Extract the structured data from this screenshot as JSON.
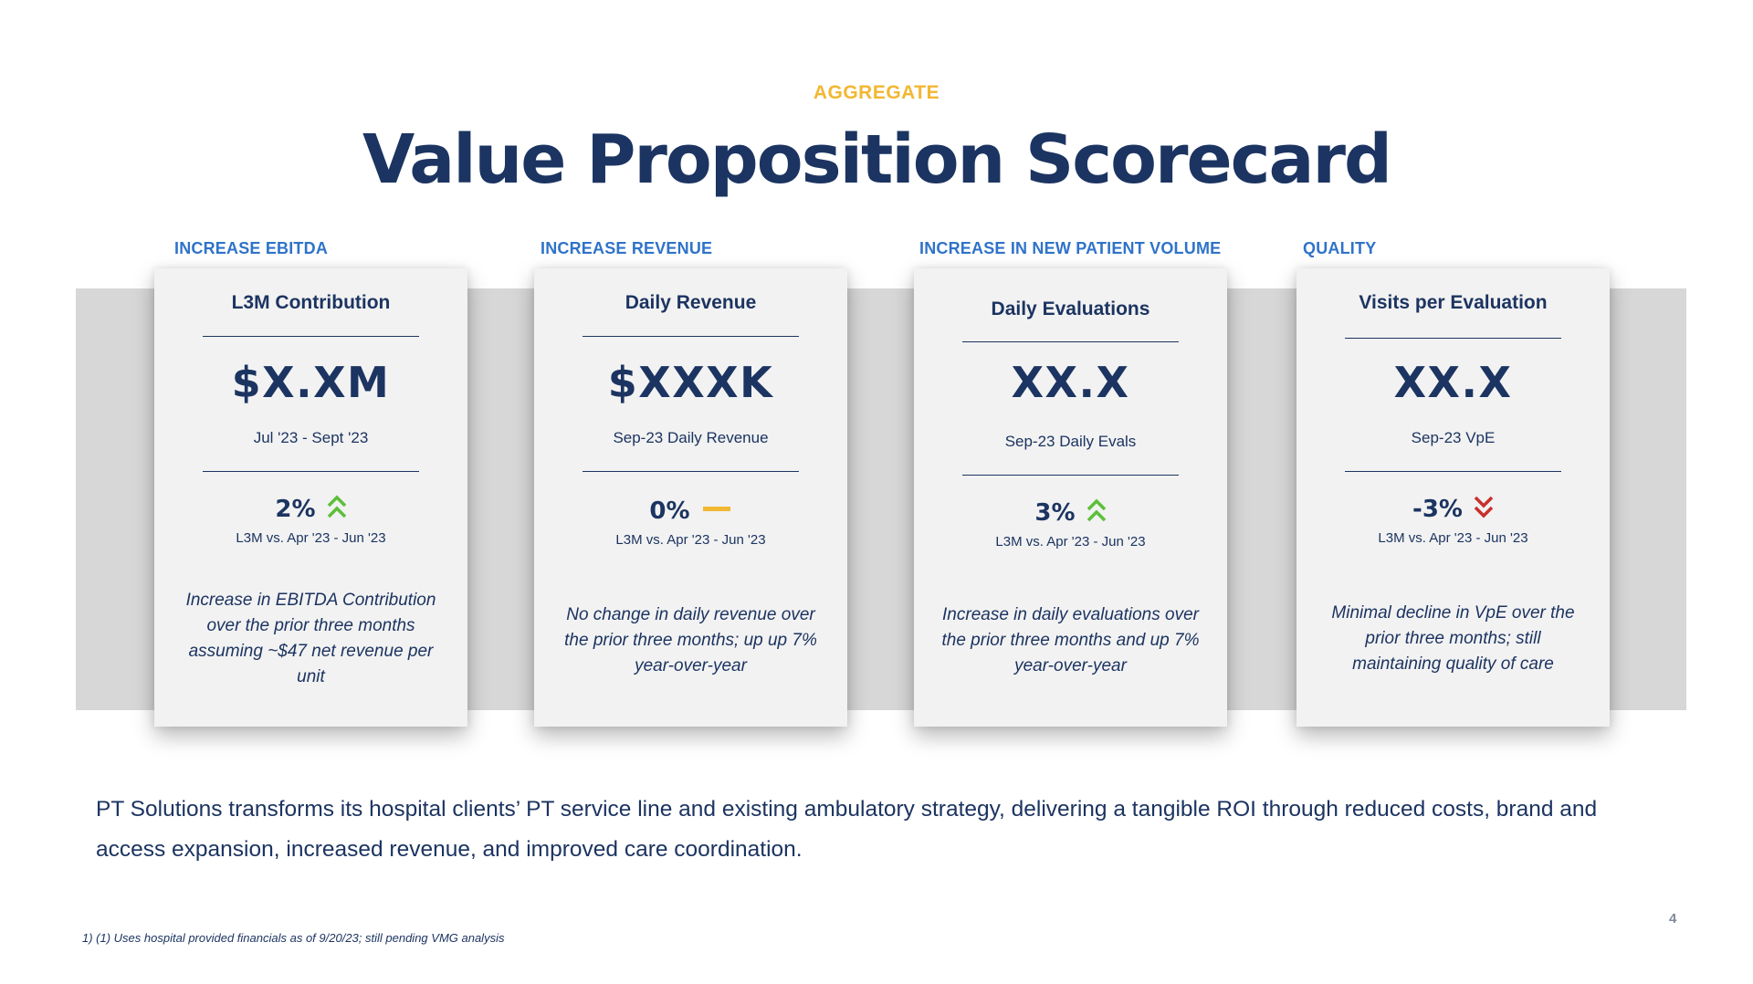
{
  "header": {
    "eyebrow": "AGGREGATE",
    "title": "Value Proposition Scorecard"
  },
  "cards": [
    {
      "category": "INCREASE EBITDA",
      "title": "L3M Contribution",
      "value": "$X.XM",
      "subtitle": "Jul '23 - Sept '23",
      "change": "2%",
      "trend": "up",
      "trend_icon": "double-chevron-up-icon",
      "trend_color": "#5cbf3a",
      "comparison": "L3M vs. Apr '23 - Jun '23",
      "description": "Increase in EBITDA Contribution over the prior three months assuming ~$47 net revenue per unit"
    },
    {
      "category": "INCREASE REVENUE",
      "title": "Daily Revenue",
      "value": "$XXXK",
      "subtitle": "Sep-23 Daily Revenue",
      "change": "0%",
      "trend": "flat",
      "trend_icon": "dash-icon",
      "trend_color": "#f2b733",
      "comparison": "L3M vs. Apr '23 - Jun '23",
      "description": "No change in daily revenue over the prior three months; up up 7% year-over-year"
    },
    {
      "category": "INCREASE IN NEW PATIENT VOLUME",
      "title": "Daily Evaluations",
      "value": "XX.X",
      "subtitle": "Sep-23 Daily Evals",
      "change": "3%",
      "trend": "up",
      "trend_icon": "double-chevron-up-icon",
      "trend_color": "#5cbf3a",
      "comparison": "L3M vs. Apr '23 - Jun '23",
      "description": "Increase in daily evaluations over the prior three months and up 7% year-over-year"
    },
    {
      "category": "QUALITY",
      "title": "Visits per Evaluation",
      "value": "XX.X",
      "subtitle": "Sep-23 VpE",
      "change": "-3%",
      "trend": "down",
      "trend_icon": "double-chevron-down-icon",
      "trend_color": "#c8302c",
      "comparison": "L3M vs. Apr '23 - Jun '23",
      "description": "Minimal decline in VpE over the prior three months; still maintaining quality of care"
    }
  ],
  "body": {
    "text": "PT Solutions transforms its hospital clients’ PT service line and existing ambulatory strategy, delivering a tangible ROI through reduced costs, brand and access expansion, increased revenue, and improved care coordination."
  },
  "footnote": "1) (1) Uses hospital provided financials as of 9/20/23; still pending VMG analysis",
  "page_number": "4",
  "colors": {
    "navy": "#1c3461",
    "gold": "#f2b733",
    "blue": "#2f73c9",
    "green": "#5cbf3a",
    "red": "#c8302c"
  }
}
